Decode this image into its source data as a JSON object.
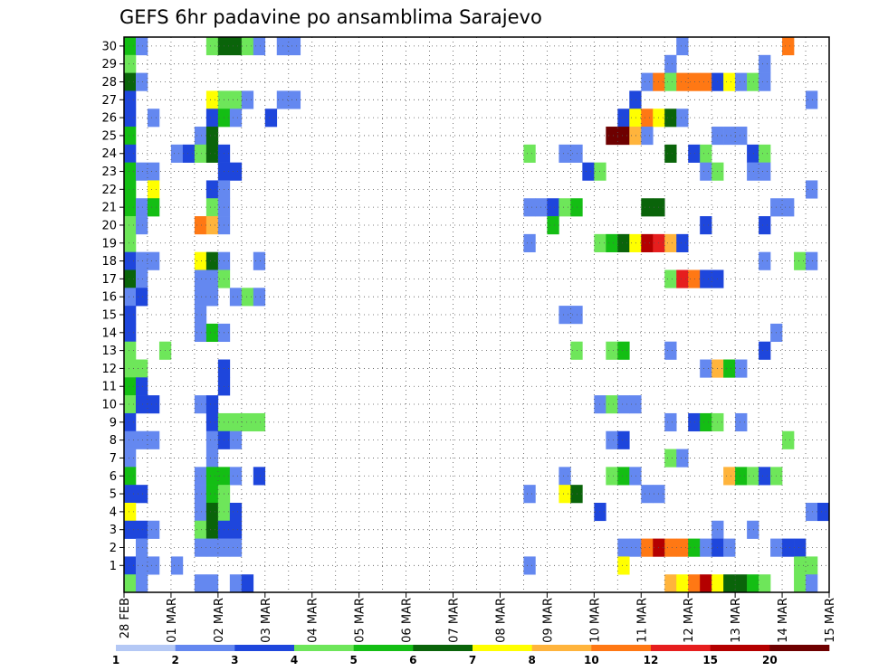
{
  "chart_data": {
    "type": "heatmap",
    "title": "GEFS 6hr padavine po ansamblima Sarajevo",
    "xlabel": "",
    "ylabel": "",
    "x_ticks": [
      "28 FEB",
      "01 MAR",
      "02 MAR",
      "03 MAR",
      "04 MAR",
      "05 MAR",
      "06 MAR",
      "07 MAR",
      "08 MAR",
      "09 MAR",
      "10 MAR",
      "11 MAR",
      "12 MAR",
      "13 MAR",
      "14 MAR",
      "15 MAR"
    ],
    "y_ticks": [
      "1",
      "2",
      "3",
      "4",
      "5",
      "6",
      "7",
      "8",
      "9",
      "10",
      "11",
      "12",
      "13",
      "14",
      "15",
      "16",
      "17",
      "18",
      "19",
      "20",
      "21",
      "22",
      "23",
      "24",
      "25",
      "26",
      "27",
      "28",
      "29",
      "30"
    ],
    "x_range_steps": [
      0,
      59
    ],
    "y_range": [
      0,
      30
    ],
    "grid": true,
    "colorbar": {
      "labels": [
        "1",
        "2",
        "3",
        "4",
        "5",
        "6",
        "7",
        "8",
        "10",
        "12",
        "15",
        "20"
      ],
      "colors": [
        "#b4c8f5",
        "#6488f0",
        "#1e46dc",
        "#6ee65a",
        "#14be14",
        "#0a640a",
        "#ffff00",
        "#ffb43c",
        "#ff7814",
        "#e61e1e",
        "#b40000",
        "#6e0000"
      ]
    },
    "cells": [
      [
        0,
        30,
        4
      ],
      [
        1,
        30,
        1
      ],
      [
        7,
        30,
        3
      ],
      [
        8,
        30,
        5
      ],
      [
        9,
        30,
        5
      ],
      [
        10,
        30,
        3
      ],
      [
        11,
        30,
        1
      ],
      [
        13,
        30,
        1
      ],
      [
        14,
        30,
        1
      ],
      [
        47,
        30,
        1
      ],
      [
        56,
        30,
        8
      ],
      [
        0,
        29,
        3
      ],
      [
        46,
        29,
        1
      ],
      [
        54,
        29,
        1
      ],
      [
        0,
        28,
        5
      ],
      [
        1,
        28,
        1
      ],
      [
        44,
        28,
        1
      ],
      [
        45,
        28,
        8
      ],
      [
        46,
        28,
        3
      ],
      [
        47,
        28,
        8
      ],
      [
        48,
        28,
        8
      ],
      [
        49,
        28,
        8
      ],
      [
        50,
        28,
        2
      ],
      [
        51,
        28,
        6
      ],
      [
        52,
        28,
        1
      ],
      [
        53,
        28,
        3
      ],
      [
        54,
        28,
        1
      ],
      [
        0,
        27,
        2
      ],
      [
        7,
        27,
        6
      ],
      [
        8,
        27,
        3
      ],
      [
        9,
        27,
        3
      ],
      [
        10,
        27,
        1
      ],
      [
        13,
        27,
        1
      ],
      [
        14,
        27,
        1
      ],
      [
        43,
        27,
        2
      ],
      [
        58,
        27,
        1
      ],
      [
        0,
        26,
        2
      ],
      [
        2,
        26,
        1
      ],
      [
        7,
        26,
        2
      ],
      [
        8,
        26,
        4
      ],
      [
        9,
        26,
        1
      ],
      [
        12,
        26,
        2
      ],
      [
        42,
        26,
        2
      ],
      [
        43,
        26,
        6
      ],
      [
        44,
        26,
        8
      ],
      [
        45,
        26,
        6
      ],
      [
        46,
        26,
        5
      ],
      [
        47,
        26,
        1
      ],
      [
        0,
        25,
        4
      ],
      [
        6,
        25,
        1
      ],
      [
        7,
        25,
        5
      ],
      [
        41,
        25,
        11
      ],
      [
        42,
        25,
        11
      ],
      [
        43,
        25,
        7
      ],
      [
        44,
        25,
        1
      ],
      [
        50,
        25,
        1
      ],
      [
        51,
        25,
        1
      ],
      [
        52,
        25,
        1
      ],
      [
        0,
        24,
        2
      ],
      [
        4,
        24,
        1
      ],
      [
        5,
        24,
        2
      ],
      [
        6,
        24,
        3
      ],
      [
        7,
        24,
        5
      ],
      [
        8,
        24,
        2
      ],
      [
        34,
        24,
        3
      ],
      [
        37,
        24,
        1
      ],
      [
        38,
        24,
        1
      ],
      [
        46,
        24,
        5
      ],
      [
        48,
        24,
        2
      ],
      [
        49,
        24,
        3
      ],
      [
        53,
        24,
        2
      ],
      [
        54,
        24,
        3
      ],
      [
        0,
        23,
        4
      ],
      [
        1,
        23,
        1
      ],
      [
        2,
        23,
        1
      ],
      [
        8,
        23,
        2
      ],
      [
        9,
        23,
        2
      ],
      [
        39,
        23,
        2
      ],
      [
        40,
        23,
        3
      ],
      [
        49,
        23,
        1
      ],
      [
        50,
        23,
        3
      ],
      [
        53,
        23,
        1
      ],
      [
        54,
        23,
        1
      ],
      [
        0,
        22,
        4
      ],
      [
        2,
        22,
        6
      ],
      [
        7,
        22,
        2
      ],
      [
        8,
        22,
        1
      ],
      [
        58,
        22,
        1
      ],
      [
        0,
        21,
        4
      ],
      [
        1,
        21,
        1
      ],
      [
        2,
        21,
        4
      ],
      [
        7,
        21,
        3
      ],
      [
        8,
        21,
        1
      ],
      [
        34,
        21,
        1
      ],
      [
        35,
        21,
        1
      ],
      [
        36,
        21,
        2
      ],
      [
        37,
        21,
        3
      ],
      [
        38,
        21,
        4
      ],
      [
        44,
        21,
        5
      ],
      [
        45,
        21,
        5
      ],
      [
        55,
        21,
        1
      ],
      [
        56,
        21,
        1
      ],
      [
        0,
        20,
        3
      ],
      [
        1,
        20,
        1
      ],
      [
        6,
        20,
        8
      ],
      [
        7,
        20,
        7
      ],
      [
        8,
        20,
        1
      ],
      [
        36,
        20,
        4
      ],
      [
        49,
        20,
        2
      ],
      [
        54,
        20,
        2
      ],
      [
        0,
        19,
        3
      ],
      [
        34,
        19,
        1
      ],
      [
        40,
        19,
        3
      ],
      [
        41,
        19,
        4
      ],
      [
        42,
        19,
        5
      ],
      [
        43,
        19,
        6
      ],
      [
        44,
        19,
        10
      ],
      [
        45,
        19,
        9
      ],
      [
        46,
        19,
        7
      ],
      [
        47,
        19,
        2
      ],
      [
        0,
        18,
        2
      ],
      [
        1,
        18,
        1
      ],
      [
        2,
        18,
        1
      ],
      [
        6,
        18,
        6
      ],
      [
        7,
        18,
        5
      ],
      [
        8,
        18,
        1
      ],
      [
        11,
        18,
        1
      ],
      [
        54,
        18,
        1
      ],
      [
        57,
        18,
        3
      ],
      [
        58,
        18,
        1
      ],
      [
        0,
        17,
        5
      ],
      [
        1,
        17,
        1
      ],
      [
        6,
        17,
        1
      ],
      [
        7,
        17,
        1
      ],
      [
        8,
        17,
        3
      ],
      [
        46,
        17,
        3
      ],
      [
        47,
        17,
        9
      ],
      [
        48,
        17,
        8
      ],
      [
        49,
        17,
        2
      ],
      [
        50,
        17,
        2
      ],
      [
        0,
        16,
        1
      ],
      [
        1,
        16,
        2
      ],
      [
        6,
        16,
        1
      ],
      [
        7,
        16,
        1
      ],
      [
        9,
        16,
        1
      ],
      [
        10,
        16,
        3
      ],
      [
        11,
        16,
        1
      ],
      [
        0,
        15,
        2
      ],
      [
        6,
        15,
        1
      ],
      [
        37,
        15,
        1
      ],
      [
        38,
        15,
        1
      ],
      [
        0,
        14,
        2
      ],
      [
        6,
        14,
        1
      ],
      [
        7,
        14,
        4
      ],
      [
        8,
        14,
        1
      ],
      [
        55,
        14,
        1
      ],
      [
        0,
        13,
        3
      ],
      [
        3,
        13,
        3
      ],
      [
        38,
        13,
        3
      ],
      [
        41,
        13,
        3
      ],
      [
        42,
        13,
        4
      ],
      [
        46,
        13,
        1
      ],
      [
        54,
        13,
        2
      ],
      [
        0,
        12,
        3
      ],
      [
        1,
        12,
        3
      ],
      [
        8,
        12,
        2
      ],
      [
        49,
        12,
        1
      ],
      [
        50,
        12,
        7
      ],
      [
        51,
        12,
        4
      ],
      [
        52,
        12,
        1
      ],
      [
        0,
        11,
        4
      ],
      [
        1,
        11,
        2
      ],
      [
        8,
        11,
        2
      ],
      [
        0,
        10,
        3
      ],
      [
        1,
        10,
        2
      ],
      [
        2,
        10,
        2
      ],
      [
        6,
        10,
        1
      ],
      [
        7,
        10,
        2
      ],
      [
        40,
        10,
        1
      ],
      [
        41,
        10,
        3
      ],
      [
        42,
        10,
        1
      ],
      [
        43,
        10,
        1
      ],
      [
        0,
        9,
        2
      ],
      [
        7,
        9,
        2
      ],
      [
        8,
        9,
        3
      ],
      [
        9,
        9,
        3
      ],
      [
        10,
        9,
        3
      ],
      [
        11,
        9,
        3
      ],
      [
        46,
        9,
        1
      ],
      [
        48,
        9,
        2
      ],
      [
        49,
        9,
        4
      ],
      [
        50,
        9,
        3
      ],
      [
        52,
        9,
        1
      ],
      [
        0,
        8,
        1
      ],
      [
        1,
        8,
        1
      ],
      [
        2,
        8,
        1
      ],
      [
        7,
        8,
        1
      ],
      [
        8,
        8,
        2
      ],
      [
        9,
        8,
        1
      ],
      [
        41,
        8,
        1
      ],
      [
        42,
        8,
        2
      ],
      [
        56,
        8,
        3
      ],
      [
        0,
        7,
        1
      ],
      [
        7,
        7,
        1
      ],
      [
        46,
        7,
        3
      ],
      [
        47,
        7,
        1
      ],
      [
        0,
        6,
        4
      ],
      [
        6,
        6,
        1
      ],
      [
        7,
        6,
        4
      ],
      [
        8,
        6,
        4
      ],
      [
        9,
        6,
        1
      ],
      [
        11,
        6,
        2
      ],
      [
        37,
        6,
        1
      ],
      [
        41,
        6,
        3
      ],
      [
        42,
        6,
        4
      ],
      [
        43,
        6,
        1
      ],
      [
        51,
        6,
        7
      ],
      [
        52,
        6,
        4
      ],
      [
        53,
        6,
        3
      ],
      [
        54,
        6,
        2
      ],
      [
        55,
        6,
        3
      ],
      [
        0,
        5,
        2
      ],
      [
        1,
        5,
        2
      ],
      [
        6,
        5,
        1
      ],
      [
        7,
        5,
        4
      ],
      [
        8,
        5,
        3
      ],
      [
        34,
        5,
        1
      ],
      [
        37,
        5,
        6
      ],
      [
        38,
        5,
        5
      ],
      [
        44,
        5,
        1
      ],
      [
        45,
        5,
        1
      ],
      [
        0,
        4,
        6
      ],
      [
        6,
        4,
        1
      ],
      [
        7,
        4,
        5
      ],
      [
        8,
        4,
        3
      ],
      [
        9,
        4,
        2
      ],
      [
        40,
        4,
        2
      ],
      [
        58,
        4,
        1
      ],
      [
        59,
        4,
        2
      ],
      [
        0,
        3,
        2
      ],
      [
        1,
        3,
        2
      ],
      [
        2,
        3,
        1
      ],
      [
        6,
        3,
        3
      ],
      [
        7,
        3,
        5
      ],
      [
        8,
        3,
        2
      ],
      [
        9,
        3,
        2
      ],
      [
        50,
        3,
        1
      ],
      [
        53,
        3,
        1
      ],
      [
        1,
        2,
        1
      ],
      [
        6,
        2,
        1
      ],
      [
        7,
        2,
        1
      ],
      [
        8,
        2,
        1
      ],
      [
        9,
        2,
        1
      ],
      [
        42,
        2,
        1
      ],
      [
        43,
        2,
        1
      ],
      [
        44,
        2,
        8
      ],
      [
        45,
        2,
        10
      ],
      [
        46,
        2,
        8
      ],
      [
        47,
        2,
        8
      ],
      [
        48,
        2,
        4
      ],
      [
        49,
        2,
        1
      ],
      [
        50,
        2,
        2
      ],
      [
        51,
        2,
        1
      ],
      [
        55,
        2,
        1
      ],
      [
        56,
        2,
        2
      ],
      [
        57,
        2,
        2
      ],
      [
        0,
        1,
        2
      ],
      [
        1,
        1,
        1
      ],
      [
        2,
        1,
        1
      ],
      [
        4,
        1,
        1
      ],
      [
        34,
        1,
        1
      ],
      [
        42,
        1,
        6
      ],
      [
        57,
        1,
        3
      ],
      [
        58,
        1,
        3
      ],
      [
        0,
        0,
        3
      ],
      [
        1,
        0,
        1
      ],
      [
        6,
        0,
        1
      ],
      [
        7,
        0,
        1
      ],
      [
        9,
        0,
        1
      ],
      [
        10,
        0,
        2
      ],
      [
        46,
        0,
        7
      ],
      [
        47,
        0,
        6
      ],
      [
        48,
        0,
        8
      ],
      [
        49,
        0,
        10
      ],
      [
        50,
        0,
        6
      ],
      [
        51,
        0,
        5
      ],
      [
        52,
        0,
        5
      ],
      [
        53,
        0,
        4
      ],
      [
        54,
        0,
        3
      ],
      [
        57,
        0,
        3
      ],
      [
        58,
        0,
        1
      ]
    ]
  }
}
